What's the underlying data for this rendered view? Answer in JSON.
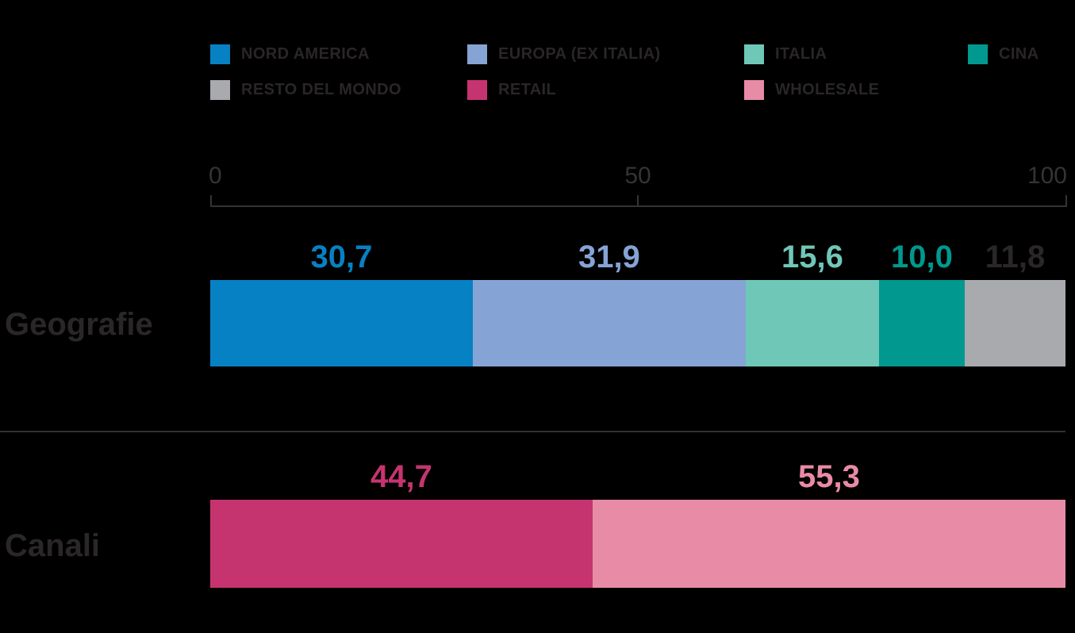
{
  "background_color": "#000000",
  "text_color": "#2a2627",
  "legend": {
    "items": [
      {
        "label": "NORD AMERICA",
        "color": "#0681c3"
      },
      {
        "label": "EUROPA (EX ITALIA)",
        "color": "#85a4d5"
      },
      {
        "label": "ITALIA",
        "color": "#6fc7b8"
      },
      {
        "label": "CINA",
        "color": "#00988f"
      },
      {
        "label": "RESTO DEL MONDO",
        "color": "#a9aaad"
      },
      {
        "label": "RETAIL",
        "color": "#c63470"
      },
      {
        "label": "WHOLESALE",
        "color": "#e88ba6"
      }
    ]
  },
  "axis": {
    "tick_labels": [
      "0",
      "50",
      "100"
    ],
    "tick_values": [
      0,
      50,
      100
    ]
  },
  "chart_data": {
    "type": "bar",
    "orientation": "horizontal",
    "stacked": true,
    "grid": false,
    "legend_position": "top",
    "xlim": [
      0,
      100
    ],
    "x_ticks": [
      0,
      50,
      100
    ],
    "categories": [
      "Geografie",
      "Canali"
    ],
    "rows": [
      {
        "category": "Geografie",
        "segments": [
          {
            "name": "NORD AMERICA",
            "value": 30.7,
            "label": "30,7",
            "color": "#0681c3",
            "label_color": "#0681c3"
          },
          {
            "name": "EUROPA (EX ITALIA)",
            "value": 31.9,
            "label": "31,9",
            "color": "#85a4d5",
            "label_color": "#85a4d5"
          },
          {
            "name": "ITALIA",
            "value": 15.6,
            "label": "15,6",
            "color": "#6fc7b8",
            "label_color": "#6fc7b8"
          },
          {
            "name": "CINA",
            "value": 10.0,
            "label": "10,0",
            "color": "#00988f",
            "label_color": "#00988f"
          },
          {
            "name": "RESTO DEL MONDO",
            "value": 11.8,
            "label": "11,8",
            "color": "#a9aaad",
            "label_color": "#2b2728"
          }
        ]
      },
      {
        "category": "Canali",
        "segments": [
          {
            "name": "RETAIL",
            "value": 44.7,
            "label": "44,7",
            "color": "#c63470",
            "label_color": "#c63470"
          },
          {
            "name": "WHOLESALE",
            "value": 55.3,
            "label": "55,3",
            "color": "#e88ba6",
            "label_color": "#e88ba6"
          }
        ]
      }
    ]
  }
}
